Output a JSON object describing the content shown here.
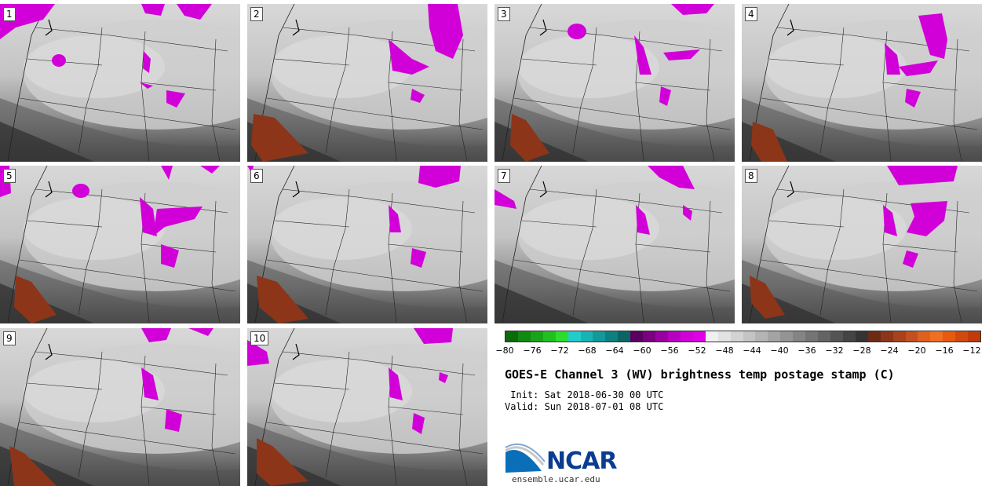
{
  "panels": [
    {
      "label": "1"
    },
    {
      "label": "2"
    },
    {
      "label": "3"
    },
    {
      "label": "4"
    },
    {
      "label": "5"
    },
    {
      "label": "6"
    },
    {
      "label": "7"
    },
    {
      "label": "8"
    },
    {
      "label": "9"
    },
    {
      "label": "10"
    }
  ],
  "colorbar": {
    "ticks": [
      "−80",
      "−76",
      "−72",
      "−68",
      "−64",
      "−60",
      "−56",
      "−52",
      "−48",
      "−44",
      "−40",
      "−36",
      "−32",
      "−28",
      "−24",
      "−20",
      "−16",
      "−12"
    ],
    "colors": [
      "#0a6b0a",
      "#118a11",
      "#17a517",
      "#20c020",
      "#2ddd2d",
      "#22cccc",
      "#1ab3b3",
      "#139999",
      "#0d8080",
      "#0a6666",
      "#5a0060",
      "#7a0080",
      "#9a00a0",
      "#b800c0",
      "#d200d8",
      "#e000e8",
      "#f0f0f0",
      "#e2e2e2",
      "#d3d3d3",
      "#c4c4c4",
      "#b4b4b4",
      "#a4a4a4",
      "#949494",
      "#848484",
      "#747474",
      "#646464",
      "#545454",
      "#444444",
      "#343434",
      "#6e2a14",
      "#8c3518",
      "#a8421c",
      "#c45020",
      "#e06020",
      "#f07020",
      "#e85a10",
      "#d04a10",
      "#c03a0a"
    ]
  },
  "title": "GOES-E Channel 3 (WV) brightness temp postage stamp (C)",
  "init": " Init: Sat 2018-06-30 00 UTC",
  "valid": "Valid: Sun 2018-07-01 08 UTC",
  "logo": {
    "name": "NCAR",
    "url": "ensemble.ucar.edu"
  }
}
